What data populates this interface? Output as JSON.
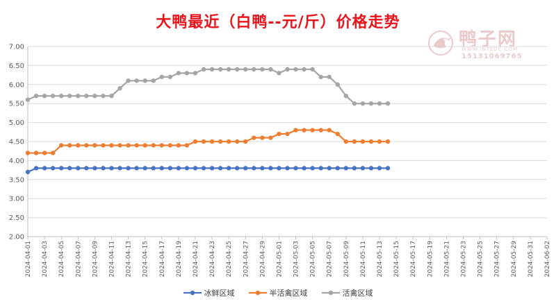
{
  "chart_data": {
    "type": "line",
    "title": "大鸭最近（白鸭--元/斤）价格走势",
    "ylim": [
      2.0,
      7.0
    ],
    "y_ticks": [
      "7.00",
      "6.50",
      "6.00",
      "5.50",
      "5.00",
      "4.50",
      "4.00",
      "3.50",
      "3.00",
      "2.50",
      "2.00"
    ],
    "x_tick_labels": [
      "2024-04-01",
      "2024-04-03",
      "2024-04-05",
      "2024-04-07",
      "2024-04-09",
      "2024-04-11",
      "2024-04-13",
      "2024-04-15",
      "2024-04-17",
      "2024-04-19",
      "2024-04-21",
      "2024-04-23",
      "2024-04-25",
      "2024-04-27",
      "2024-04-29",
      "2024-05-01",
      "2024-05-03",
      "2024-05-05",
      "2024-05-07",
      "2024-05-09",
      "2024-05-11",
      "2024-05-13",
      "2024-05-15",
      "2024-05-17",
      "2024-05-19",
      "2024-05-21",
      "2024-05-23",
      "2024-05-25",
      "2024-05-27",
      "2024-05-29",
      "2024-05-31",
      "2024-06-02"
    ],
    "x_start": "2024-04-01",
    "x_end": "2024-06-02",
    "grid": true,
    "legend_position": "bottom",
    "series": [
      {
        "name": "冰鲜区域",
        "color": "#4472c4",
        "values": [
          3.7,
          3.8,
          3.8,
          3.8,
          3.8,
          3.8,
          3.8,
          3.8,
          3.8,
          3.8,
          3.8,
          3.8,
          3.8,
          3.8,
          3.8,
          3.8,
          3.8,
          3.8,
          3.8,
          3.8,
          3.8,
          3.8,
          3.8,
          3.8,
          3.8,
          3.8,
          3.8,
          3.8,
          3.8,
          3.8,
          3.8,
          3.8,
          3.8,
          3.8,
          3.8,
          3.8,
          3.8,
          3.8,
          3.8,
          3.8,
          3.8,
          3.8,
          3.8,
          3.8
        ]
      },
      {
        "name": "半活禽区域",
        "color": "#ed7d31",
        "values": [
          4.2,
          4.2,
          4.2,
          4.2,
          4.4,
          4.4,
          4.4,
          4.4,
          4.4,
          4.4,
          4.4,
          4.4,
          4.4,
          4.4,
          4.4,
          4.4,
          4.4,
          4.4,
          4.4,
          4.4,
          4.5,
          4.5,
          4.5,
          4.5,
          4.5,
          4.5,
          4.5,
          4.6,
          4.6,
          4.6,
          4.7,
          4.7,
          4.8,
          4.8,
          4.8,
          4.8,
          4.8,
          4.7,
          4.5,
          4.5,
          4.5,
          4.5,
          4.5,
          4.5
        ]
      },
      {
        "name": "活禽区域",
        "color": "#a5a5a5",
        "values": [
          5.6,
          5.7,
          5.7,
          5.7,
          5.7,
          5.7,
          5.7,
          5.7,
          5.7,
          5.7,
          5.7,
          5.9,
          6.1,
          6.1,
          6.1,
          6.1,
          6.2,
          6.2,
          6.3,
          6.3,
          6.3,
          6.4,
          6.4,
          6.4,
          6.4,
          6.4,
          6.4,
          6.4,
          6.4,
          6.4,
          6.3,
          6.4,
          6.4,
          6.4,
          6.4,
          6.2,
          6.2,
          6.0,
          5.7,
          5.5,
          5.5,
          5.5,
          5.5,
          5.5
        ]
      }
    ]
  },
  "watermark": {
    "logo_icon": "duck-logo-icon",
    "name": "鸭子网",
    "url": "WWW.INTEDC.COM",
    "phone": "15131069765"
  }
}
